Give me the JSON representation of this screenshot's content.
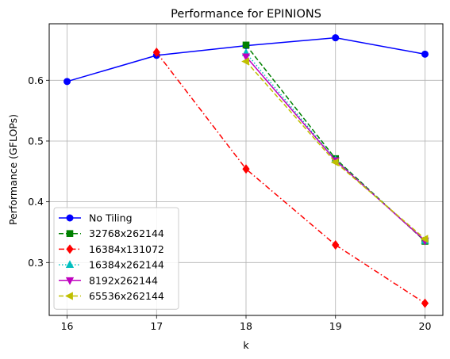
{
  "chart_data": {
    "type": "line",
    "title": "Performance for EPINIONS",
    "xlabel": "k",
    "ylabel": "Performance (GFLOPs)",
    "xlim": [
      15.8,
      20.2
    ],
    "ylim": [
      0.213,
      0.693
    ],
    "xticks": [
      16,
      17,
      18,
      19,
      20
    ],
    "yticks": [
      0.3,
      0.4,
      0.5,
      0.6
    ],
    "grid": true,
    "legend_position": "lower-left",
    "series": [
      {
        "name": "No Tiling",
        "color": "#0000ff",
        "marker": "circle",
        "linestyle": "solid",
        "x": [
          16,
          17,
          18,
          19,
          20
        ],
        "y": [
          0.598,
          0.641,
          0.657,
          0.67,
          0.643
        ]
      },
      {
        "name": "32768x262144",
        "color": "#008000",
        "marker": "square",
        "linestyle": "dashed",
        "x": [
          18,
          19,
          20
        ],
        "y": [
          0.658,
          0.471,
          0.335
        ]
      },
      {
        "name": "16384x131072",
        "color": "#ff0000",
        "marker": "diamond",
        "linestyle": "dashdot",
        "x": [
          17,
          18,
          19,
          20
        ],
        "y": [
          0.646,
          0.454,
          0.329,
          0.233
        ]
      },
      {
        "name": "16384x262144",
        "color": "#00bfbf",
        "marker": "triangle-up",
        "linestyle": "dotted",
        "x": [
          18,
          19,
          20
        ],
        "y": [
          0.645,
          0.469,
          0.336
        ]
      },
      {
        "name": "8192x262144",
        "color": "#bf00bf",
        "marker": "triangle-down",
        "linestyle": "solid",
        "x": [
          18,
          19,
          20
        ],
        "y": [
          0.639,
          0.468,
          0.336
        ]
      },
      {
        "name": "65536x262144",
        "color": "#bfbf00",
        "marker": "triangle-left",
        "linestyle": "dashed",
        "x": [
          18,
          19,
          20
        ],
        "y": [
          0.631,
          0.465,
          0.339
        ]
      }
    ]
  }
}
